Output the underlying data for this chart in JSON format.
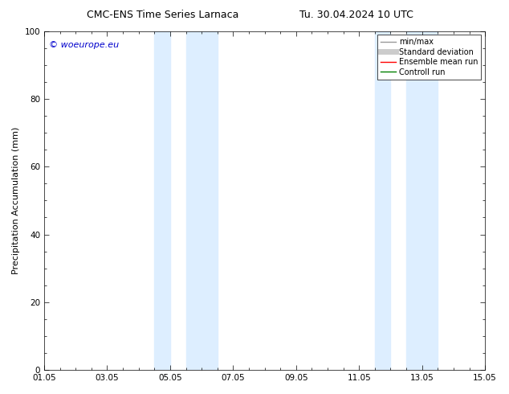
{
  "title_left": "CMC-ENS Time Series Larnaca",
  "title_right": "Tu. 30.04.2024 10 UTC",
  "ylabel": "Precipitation Accumulation (mm)",
  "watermark": "© woeurope.eu",
  "watermark_color": "#0000cc",
  "xlim": [
    0,
    14
  ],
  "ylim": [
    0,
    100
  ],
  "yticks": [
    0,
    20,
    40,
    60,
    80,
    100
  ],
  "xtick_labels": [
    "01.05",
    "03.05",
    "05.05",
    "07.05",
    "09.05",
    "11.05",
    "13.05",
    "15.05"
  ],
  "xtick_positions": [
    0,
    2,
    4,
    6,
    8,
    10,
    12,
    14
  ],
  "shaded_regions": [
    {
      "xmin": 3.5,
      "xmax": 4.0,
      "color": "#ddeeff"
    },
    {
      "xmin": 4.5,
      "xmax": 5.5,
      "color": "#ddeeff"
    },
    {
      "xmin": 10.5,
      "xmax": 11.0,
      "color": "#ddeeff"
    },
    {
      "xmin": 11.5,
      "xmax": 12.5,
      "color": "#ddeeff"
    }
  ],
  "legend_entries": [
    {
      "label": "min/max",
      "color": "#999999",
      "linewidth": 1.0
    },
    {
      "label": "Standard deviation",
      "color": "#cccccc",
      "linewidth": 5
    },
    {
      "label": "Ensemble mean run",
      "color": "#ff0000",
      "linewidth": 1.0
    },
    {
      "label": "Controll run",
      "color": "#008000",
      "linewidth": 1.0
    }
  ],
  "bg_color": "#ffffff",
  "title_fontsize": 9,
  "ylabel_fontsize": 8,
  "tick_fontsize": 7.5,
  "legend_fontsize": 7,
  "watermark_fontsize": 8
}
